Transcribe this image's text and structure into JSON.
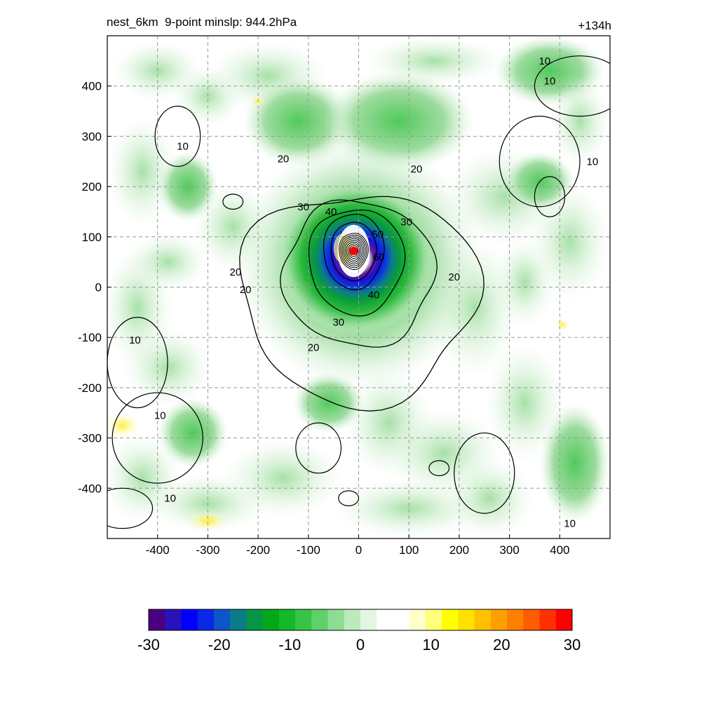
{
  "header": {
    "title_left": "nest_6km  9-point minslp: 944.2hPa",
    "title_right": "+134h"
  },
  "chart_data": {
    "type": "heatmap",
    "title": "nest_6km  9-point minslp: 944.2hPa",
    "forecast_hour": "+134h",
    "xlim": [
      -500,
      500
    ],
    "ylim": [
      -500,
      500
    ],
    "x_ticks": [
      -400,
      -300,
      -200,
      -100,
      0,
      100,
      200,
      300,
      400
    ],
    "y_ticks": [
      -400,
      -300,
      -200,
      -100,
      0,
      100,
      200,
      300,
      400
    ],
    "grid": true,
    "grid_style": "dashed",
    "storm_center": {
      "x": -10,
      "y": 72
    },
    "contour_levels": [
      10,
      20,
      30,
      40,
      50,
      60
    ],
    "contour_labels": [
      {
        "text": "10",
        "x": -350,
        "y": 280
      },
      {
        "text": "10",
        "x": 370,
        "y": 450
      },
      {
        "text": "10",
        "x": 380,
        "y": 410
      },
      {
        "text": "10",
        "x": 465,
        "y": 250
      },
      {
        "text": "10",
        "x": -445,
        "y": -105
      },
      {
        "text": "10",
        "x": -395,
        "y": -255
      },
      {
        "text": "10",
        "x": -375,
        "y": -420
      },
      {
        "text": "10",
        "x": 420,
        "y": -470
      },
      {
        "text": "20",
        "x": -150,
        "y": 255
      },
      {
        "text": "20",
        "x": 115,
        "y": 235
      },
      {
        "text": "20",
        "x": -245,
        "y": 30
      },
      {
        "text": "20",
        "x": -225,
        "y": -5
      },
      {
        "text": "20",
        "x": -90,
        "y": -120
      },
      {
        "text": "20",
        "x": 190,
        "y": 20
      },
      {
        "text": "30",
        "x": -110,
        "y": 160
      },
      {
        "text": "30",
        "x": 95,
        "y": 130
      },
      {
        "text": "30",
        "x": -40,
        "y": -70
      },
      {
        "text": "40",
        "x": -55,
        "y": 150
      },
      {
        "text": "40",
        "x": 30,
        "y": -15
      },
      {
        "text": "50",
        "x": 38,
        "y": 105
      },
      {
        "text": "60",
        "x": 40,
        "y": 60
      }
    ],
    "colorbar": {
      "min": -30,
      "max": 30,
      "ticks": [
        -30,
        -20,
        -10,
        0,
        10,
        20,
        30
      ],
      "colors": [
        "#4b0082",
        "#2a12b8",
        "#0000ff",
        "#0a28e6",
        "#0d55c8",
        "#0b7c86",
        "#079645",
        "#02a81a",
        "#14b829",
        "#36c446",
        "#5fd06a",
        "#8fdc93",
        "#bdeabd",
        "#e2f6e2",
        "#ffffff",
        "#ffffff",
        "#ffffcc",
        "#ffff7a",
        "#ffff00",
        "#ffe000",
        "#ffc000",
        "#ffa000",
        "#ff8000",
        "#ff5c00",
        "#ff3000",
        "#ff0000"
      ]
    }
  }
}
